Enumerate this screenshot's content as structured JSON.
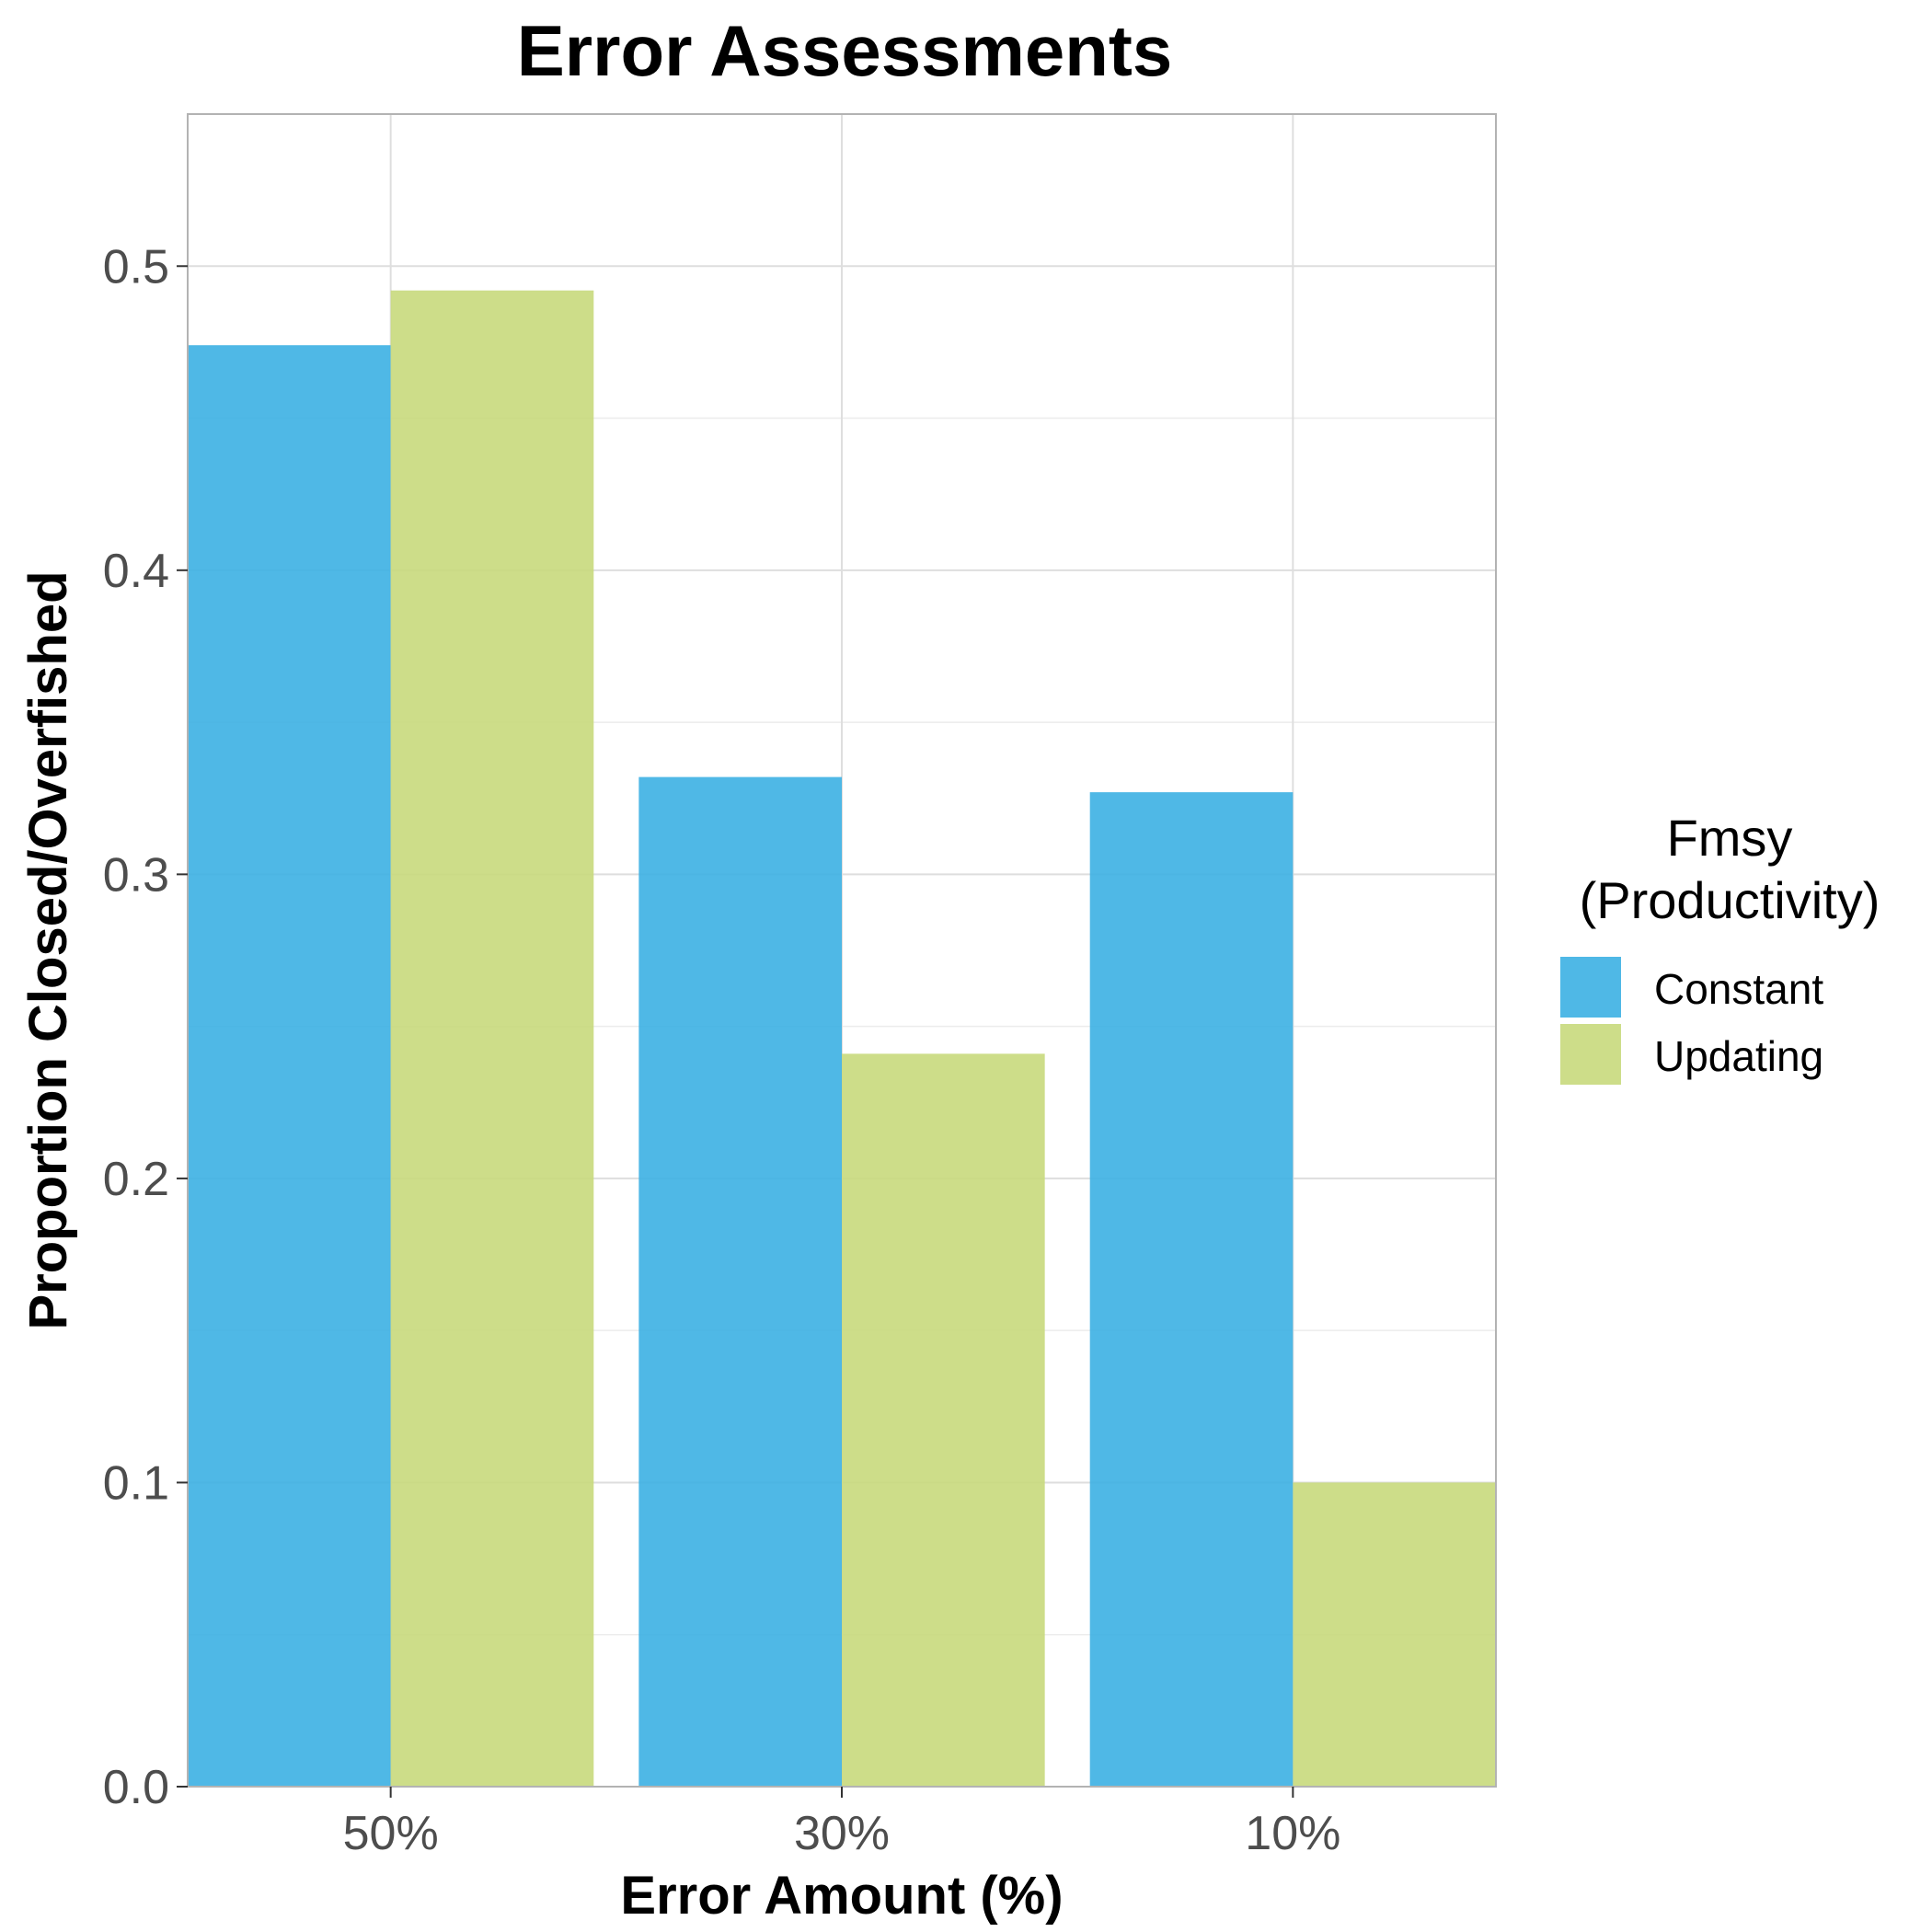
{
  "chart_data": {
    "type": "bar",
    "title": "Error Assessments",
    "xlabel": "Error Amount (%)",
    "ylabel": "Proportion Closed/Overfished",
    "categories": [
      "50%",
      "30%",
      "10%"
    ],
    "series": [
      {
        "name": "Constant",
        "values": [
          0.474,
          0.332,
          0.327
        ],
        "color": "#3cb0e3"
      },
      {
        "name": "Updating",
        "values": [
          0.492,
          0.241,
          0.1
        ],
        "color": "#c8d97c"
      }
    ],
    "ylim": [
      0,
      0.55
    ],
    "yticks": [
      0.0,
      0.1,
      0.2,
      0.3,
      0.4,
      0.5
    ],
    "ytick_labels": [
      "0.0",
      "0.1",
      "0.2",
      "0.3",
      "0.4",
      "0.5"
    ],
    "grid": true,
    "legend": {
      "title_line1": "Fmsy",
      "title_line2": "(Productivity)",
      "position": "right"
    }
  }
}
